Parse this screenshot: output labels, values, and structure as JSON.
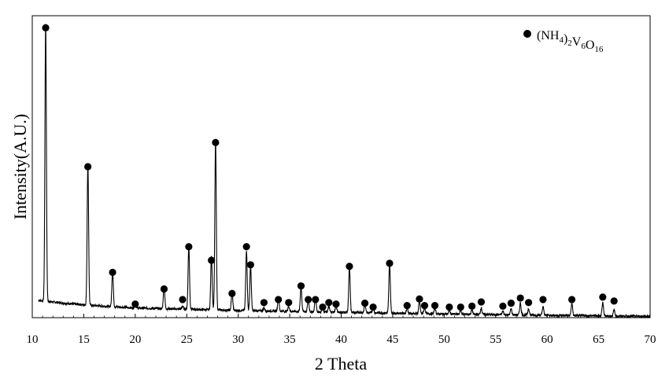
{
  "chart_data": {
    "type": "line",
    "title": "",
    "xlabel": "2 Theta",
    "ylabel": "Intensity(A.U.)",
    "xlim": [
      10,
      70
    ],
    "x_ticks": [
      10,
      15,
      20,
      25,
      30,
      35,
      40,
      45,
      50,
      55,
      60,
      65,
      70
    ],
    "y_unit": "arbitrary units (relative intensity, 0–1)",
    "ylim": [
      0,
      1.0
    ],
    "y_ticks_shown": false,
    "grid": false,
    "legend": {
      "placement": "top-right",
      "marker": "filled-circle",
      "parts": [
        {
          "text": "(NH",
          "shift": "base"
        },
        {
          "text": "4",
          "shift": "sub"
        },
        {
          "text": ")",
          "shift": "base"
        },
        {
          "text": "2",
          "shift": "sub"
        },
        {
          "text": "V",
          "shift": "base"
        },
        {
          "text": "6",
          "shift": "sub"
        },
        {
          "text": "O",
          "shift": "base"
        },
        {
          "text": "16",
          "shift": "sub"
        }
      ]
    },
    "series": [
      {
        "name": "(NH4)2V6O16",
        "color": "#000000",
        "baseline": [
          [
            10,
            0.06
          ],
          [
            11,
            0.056
          ],
          [
            13,
            0.048
          ],
          [
            16,
            0.04
          ],
          [
            20,
            0.032
          ],
          [
            30,
            0.024
          ],
          [
            40,
            0.018
          ],
          [
            50,
            0.012
          ],
          [
            60,
            0.008
          ],
          [
            70,
            0.004
          ]
        ],
        "peaks": [
          [
            11.3,
            0.92
          ],
          [
            15.4,
            0.47
          ],
          [
            17.8,
            0.12
          ],
          [
            20.0,
            0.015
          ],
          [
            22.8,
            0.075
          ],
          [
            24.6,
            0.01
          ],
          [
            25.2,
            0.21
          ],
          [
            27.4,
            0.18
          ],
          [
            27.8,
            0.56
          ],
          [
            29.4,
            0.06
          ],
          [
            30.8,
            0.2
          ],
          [
            31.2,
            0.15
          ],
          [
            32.5,
            0.01
          ],
          [
            33.9,
            0.045
          ],
          [
            34.9,
            0.018
          ],
          [
            36.1,
            0.085
          ],
          [
            36.8,
            0.04
          ],
          [
            37.5,
            0.05
          ],
          [
            38.2,
            0.015
          ],
          [
            38.8,
            0.018
          ],
          [
            39.5,
            0.02
          ],
          [
            40.8,
            0.15
          ],
          [
            42.3,
            0.03
          ],
          [
            43.1,
            0.02
          ],
          [
            44.7,
            0.165
          ],
          [
            46.4,
            0.018
          ],
          [
            47.6,
            0.04
          ],
          [
            48.1,
            0.022
          ],
          [
            49.1,
            0.02
          ],
          [
            50.5,
            0.012
          ],
          [
            51.6,
            0.014
          ],
          [
            52.7,
            0.016
          ],
          [
            53.6,
            0.022
          ],
          [
            55.7,
            0.012
          ],
          [
            56.5,
            0.02
          ],
          [
            57.4,
            0.04
          ],
          [
            58.2,
            0.022
          ],
          [
            59.6,
            0.028
          ],
          [
            62.4,
            0.04
          ],
          [
            65.4,
            0.045
          ],
          [
            66.5,
            0.02
          ]
        ],
        "markers": [
          [
            11.3,
            0.96
          ],
          [
            15.4,
            0.5
          ],
          [
            17.8,
            0.15
          ],
          [
            20.0,
            0.045
          ],
          [
            22.8,
            0.095
          ],
          [
            24.6,
            0.06
          ],
          [
            25.2,
            0.235
          ],
          [
            27.4,
            0.19
          ],
          [
            27.8,
            0.58
          ],
          [
            29.4,
            0.08
          ],
          [
            30.8,
            0.235
          ],
          [
            31.2,
            0.175
          ],
          [
            32.5,
            0.05
          ],
          [
            33.9,
            0.06
          ],
          [
            34.9,
            0.05
          ],
          [
            36.1,
            0.105
          ],
          [
            36.8,
            0.06
          ],
          [
            37.5,
            0.06
          ],
          [
            38.2,
            0.035
          ],
          [
            38.8,
            0.05
          ],
          [
            39.5,
            0.045
          ],
          [
            40.8,
            0.17
          ],
          [
            42.3,
            0.048
          ],
          [
            43.1,
            0.035
          ],
          [
            44.7,
            0.18
          ],
          [
            46.4,
            0.04
          ],
          [
            47.6,
            0.062
          ],
          [
            48.1,
            0.04
          ],
          [
            49.1,
            0.04
          ],
          [
            50.5,
            0.035
          ],
          [
            51.6,
            0.035
          ],
          [
            52.7,
            0.038
          ],
          [
            53.6,
            0.052
          ],
          [
            55.7,
            0.038
          ],
          [
            56.5,
            0.048
          ],
          [
            57.4,
            0.065
          ],
          [
            58.2,
            0.05
          ],
          [
            59.6,
            0.06
          ],
          [
            62.4,
            0.06
          ],
          [
            65.4,
            0.068
          ],
          [
            66.5,
            0.055
          ]
        ]
      }
    ]
  }
}
